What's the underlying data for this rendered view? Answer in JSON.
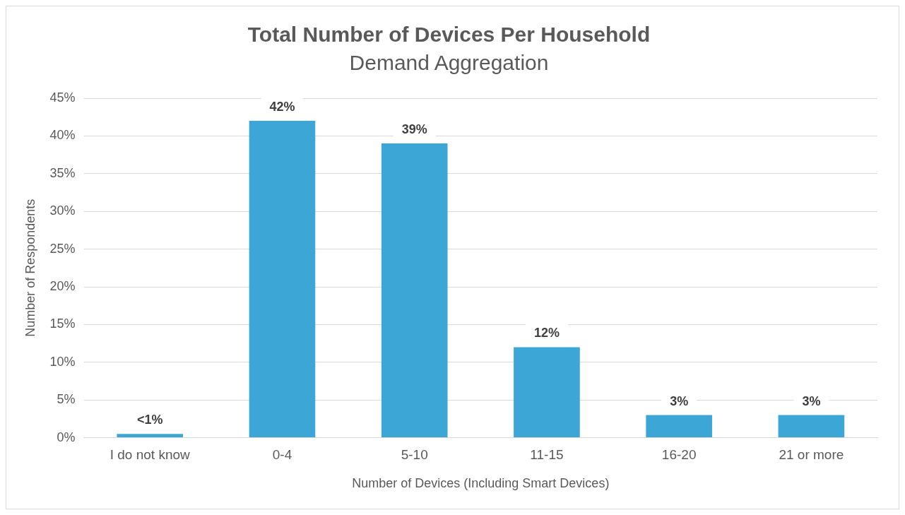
{
  "chart_data": {
    "type": "bar",
    "title": "Total Number of Devices Per Household",
    "subtitle": "Demand Aggregation",
    "xlabel": "Number of Devices (Including Smart Devices)",
    "ylabel": "Number of Respondents",
    "categories": [
      "I do not know",
      "0-4",
      "5-10",
      "11-15",
      "16-20",
      "21 or more"
    ],
    "values": [
      0.5,
      42,
      39,
      12,
      3,
      3
    ],
    "value_labels": [
      "<1%",
      "42%",
      "39%",
      "12%",
      "3%",
      "3%"
    ],
    "color": "#3ca6d7",
    "ylim": [
      0,
      45
    ],
    "yticks": [
      {
        "value": 0,
        "label": "0%"
      },
      {
        "value": 5,
        "label": "5%"
      },
      {
        "value": 10,
        "label": "10%"
      },
      {
        "value": 15,
        "label": "15%"
      },
      {
        "value": 20,
        "label": "20%"
      },
      {
        "value": 25,
        "label": "25%"
      },
      {
        "value": 30,
        "label": "30%"
      },
      {
        "value": 35,
        "label": "35%"
      },
      {
        "value": 40,
        "label": "40%"
      },
      {
        "value": 45,
        "label": "45%"
      }
    ],
    "grid": "y",
    "legend": false
  }
}
